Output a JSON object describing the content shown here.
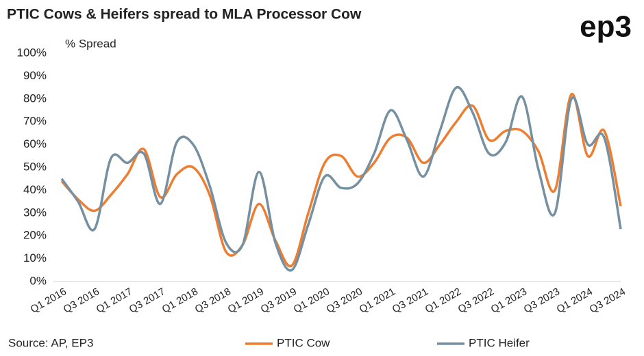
{
  "chart_data": {
    "type": "line",
    "title": "PTIC Cows & Heifers spread to MLA Processor Cow",
    "logo": "ep3",
    "y_label": "% Spread",
    "source": "Source: AP, EP3",
    "categories": [
      "Q1 2016",
      null,
      "Q3 2016",
      null,
      "Q1 2017",
      null,
      "Q3 2017",
      null,
      "Q1 2018",
      null,
      "Q3 2018",
      null,
      "Q1 2019",
      null,
      "Q3 2019",
      null,
      "Q1 2020",
      null,
      "Q3 2020",
      null,
      "Q1 2021",
      null,
      "Q3 2021",
      null,
      "Q1 2022",
      null,
      "Q3 2022",
      null,
      "Q1 2023",
      null,
      "Q3 2023",
      null,
      "Q1 2024",
      null,
      "Q3 2024"
    ],
    "series": [
      {
        "name": "PTIC Cow",
        "color": "#ed7d31",
        "values": [
          44,
          36,
          31,
          38,
          47,
          58,
          37,
          47,
          50,
          38,
          13,
          16,
          34,
          18,
          7,
          30,
          52,
          55,
          46,
          52,
          63,
          63,
          52,
          60,
          70,
          77,
          62,
          66,
          66,
          57,
          40,
          82,
          55,
          66,
          33
        ]
      },
      {
        "name": "PTIC Heifer",
        "color": "#7590a0",
        "values": [
          45,
          35,
          23,
          54,
          52,
          56,
          34,
          61,
          60,
          42,
          17,
          16,
          48,
          17,
          5,
          25,
          46,
          41,
          43,
          56,
          75,
          62,
          46,
          66,
          85,
          74,
          56,
          61,
          81,
          49,
          30,
          80,
          60,
          63,
          23
        ]
      }
    ],
    "ylim": [
      0,
      100
    ],
    "yticks": [
      {
        "value": 0,
        "label": "0%"
      },
      {
        "value": 10,
        "label": "10%"
      },
      {
        "value": 20,
        "label": "20%"
      },
      {
        "value": 30,
        "label": "30%"
      },
      {
        "value": 40,
        "label": "40%"
      },
      {
        "value": 50,
        "label": "50%"
      },
      {
        "value": 60,
        "label": "60%"
      },
      {
        "value": 70,
        "label": "70%"
      },
      {
        "value": 80,
        "label": "80%"
      },
      {
        "value": 90,
        "label": "90%"
      },
      {
        "value": 100,
        "label": "100%"
      }
    ],
    "grid": false,
    "legend": "bottom"
  }
}
